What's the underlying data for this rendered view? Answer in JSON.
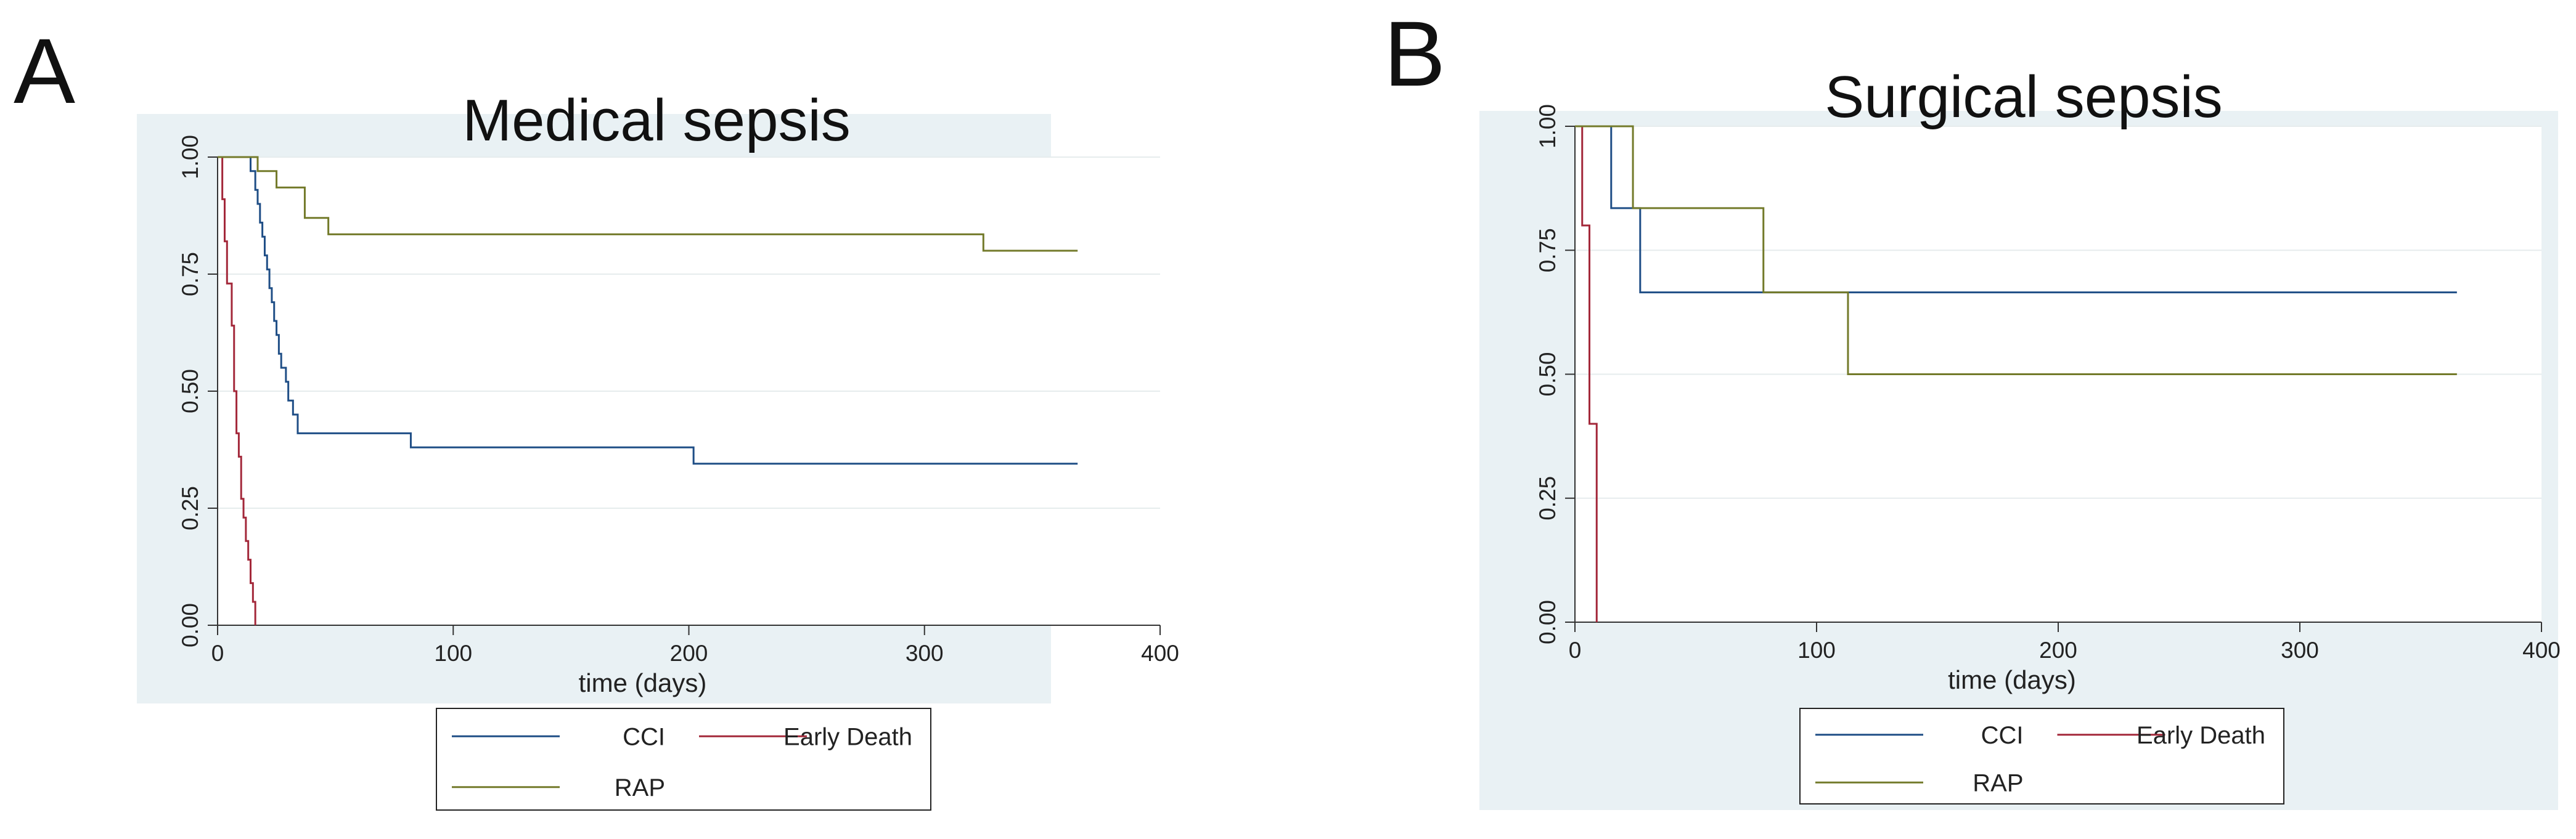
{
  "panels": [
    {
      "letter": "A",
      "colors": {
        "CCI": "#1f4e86",
        "Early Death": "#a3283a",
        "RAP": "#737a2a"
      },
      "chart_data": {
        "type": "line",
        "subtype": "kaplan-meier step",
        "title": "Medical sepsis",
        "xlabel": "time (days)",
        "ylabel": "",
        "xlim": [
          0,
          400
        ],
        "ylim": [
          0,
          1
        ],
        "xticks": [
          "0",
          "100",
          "200",
          "300",
          "400"
        ],
        "yticks": [
          "0.00",
          "0.25",
          "0.50",
          "0.75",
          "1.00"
        ],
        "grid": "horizontal",
        "legend": {
          "position": "bottom-center",
          "entries": [
            "CCI",
            "Early Death",
            "RAP"
          ]
        },
        "series": [
          {
            "name": "CCI",
            "steps": [
              [
                0,
                1.0
              ],
              [
                14,
                0.97
              ],
              [
                16,
                0.93
              ],
              [
                17,
                0.9
              ],
              [
                18,
                0.86
              ],
              [
                19,
                0.83
              ],
              [
                20,
                0.79
              ],
              [
                21,
                0.76
              ],
              [
                22,
                0.72
              ],
              [
                23,
                0.69
              ],
              [
                24,
                0.65
              ],
              [
                25,
                0.62
              ],
              [
                26,
                0.58
              ],
              [
                27,
                0.55
              ],
              [
                29,
                0.52
              ],
              [
                30,
                0.48
              ],
              [
                32,
                0.45
              ],
              [
                34,
                0.41
              ],
              [
                82,
                0.38
              ],
              [
                202,
                0.345
              ],
              [
                365,
                0.345
              ]
            ]
          },
          {
            "name": "Early Death",
            "steps": [
              [
                0,
                1.0
              ],
              [
                2,
                0.91
              ],
              [
                3,
                0.82
              ],
              [
                4,
                0.73
              ],
              [
                6,
                0.64
              ],
              [
                7,
                0.5
              ],
              [
                8,
                0.41
              ],
              [
                9,
                0.36
              ],
              [
                10,
                0.27
              ],
              [
                11,
                0.23
              ],
              [
                12,
                0.18
              ],
              [
                13,
                0.14
              ],
              [
                14,
                0.09
              ],
              [
                15,
                0.05
              ],
              [
                16,
                0.0
              ]
            ]
          },
          {
            "name": "RAP",
            "steps": [
              [
                0,
                1.0
              ],
              [
                17,
                0.97
              ],
              [
                25,
                0.935
              ],
              [
                37,
                0.87
              ],
              [
                42,
                0.87
              ],
              [
                47,
                0.835
              ],
              [
                325,
                0.8
              ],
              [
                365,
                0.8
              ]
            ]
          }
        ]
      }
    },
    {
      "letter": "B",
      "colors": {
        "CCI": "#1f4e86",
        "Early Death": "#a3283a",
        "RAP": "#737a2a"
      },
      "chart_data": {
        "type": "line",
        "subtype": "kaplan-meier step",
        "title": "Surgical sepsis",
        "xlabel": "time (days)",
        "ylabel": "",
        "xlim": [
          0,
          400
        ],
        "ylim": [
          0,
          1
        ],
        "xticks": [
          "0",
          "100",
          "200",
          "300",
          "400"
        ],
        "yticks": [
          "0.00",
          "0.25",
          "0.50",
          "0.75",
          "1.00"
        ],
        "grid": "horizontal",
        "legend": {
          "position": "bottom-center",
          "entries": [
            "CCI",
            "Early Death",
            "RAP"
          ]
        },
        "series": [
          {
            "name": "CCI",
            "steps": [
              [
                0,
                1.0
              ],
              [
                15,
                0.835
              ],
              [
                27,
                0.665
              ],
              [
                365,
                0.665
              ]
            ]
          },
          {
            "name": "Early Death",
            "steps": [
              [
                0,
                1.0
              ],
              [
                3,
                0.8
              ],
              [
                6,
                0.4
              ],
              [
                9,
                0.0
              ]
            ]
          },
          {
            "name": "RAP",
            "steps": [
              [
                0,
                1.0
              ],
              [
                24,
                0.835
              ],
              [
                78,
                0.665
              ],
              [
                113,
                0.5
              ],
              [
                365,
                0.5
              ]
            ]
          }
        ]
      }
    }
  ]
}
